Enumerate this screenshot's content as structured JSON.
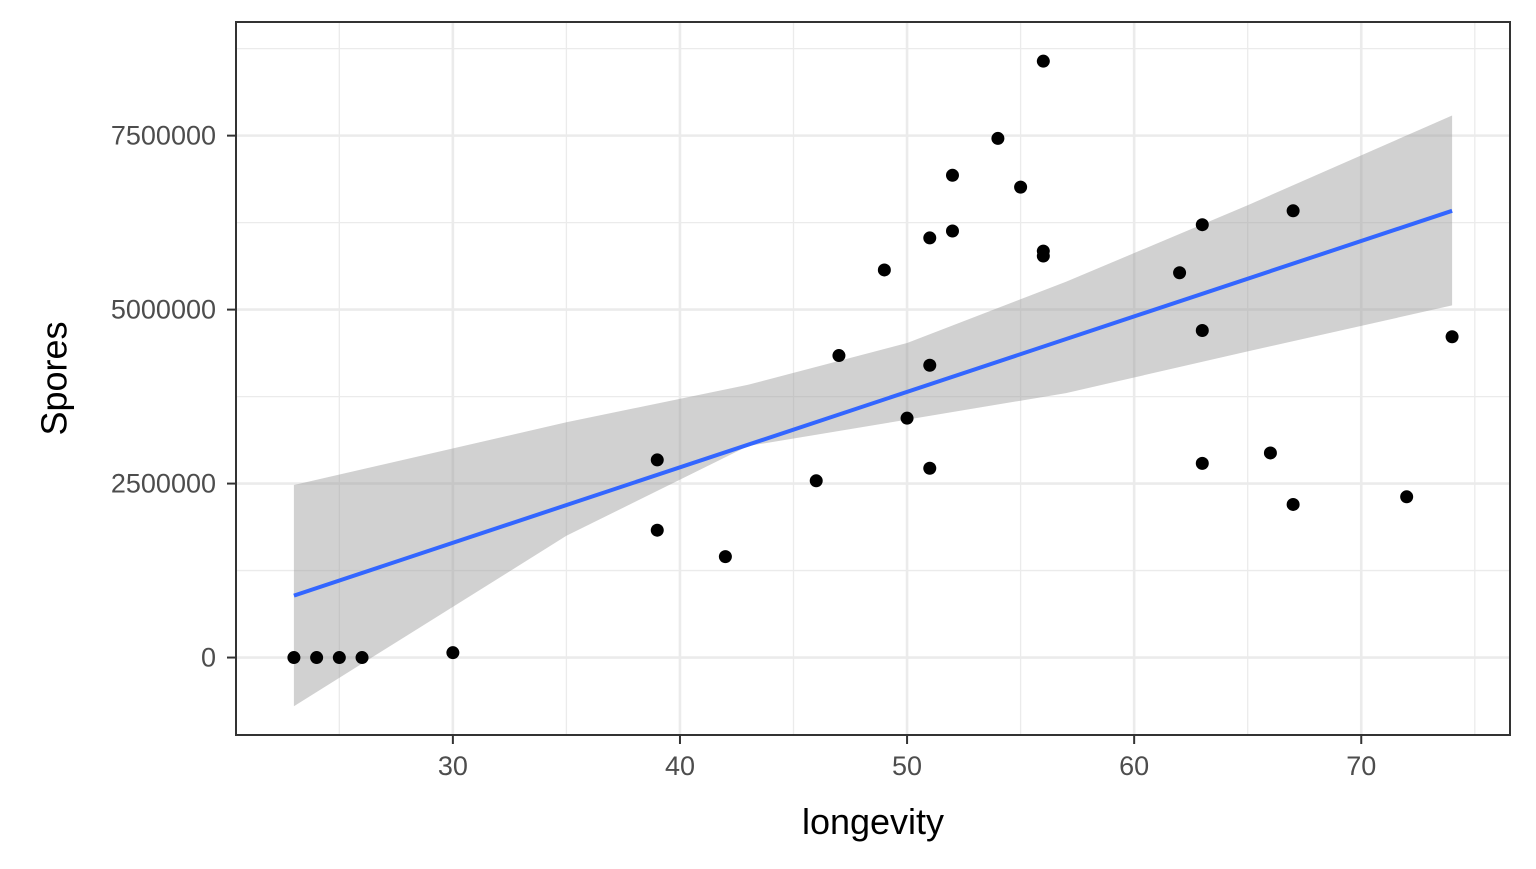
{
  "chart_data": {
    "type": "scatter",
    "title": "",
    "xlabel": "longevity",
    "ylabel": "Spores",
    "xlim": [
      20.45,
      76.55
    ],
    "ylim": [
      -1113000,
      9133000
    ],
    "x_ticks": [
      30,
      40,
      50,
      60,
      70
    ],
    "y_ticks": [
      0,
      2500000,
      5000000,
      7500000
    ],
    "x_tick_labels": [
      "30",
      "40",
      "50",
      "60",
      "70"
    ],
    "y_tick_labels": [
      "0",
      "2500000",
      "5000000",
      "7500000"
    ],
    "grid": true,
    "legend": "none",
    "series": [
      {
        "points": [
          [
            23,
            0
          ],
          [
            24,
            0
          ],
          [
            25,
            0
          ],
          [
            26,
            0
          ],
          [
            30,
            70000
          ],
          [
            39,
            2840000
          ],
          [
            39,
            1830000
          ],
          [
            42,
            1450000
          ],
          [
            46,
            2540000
          ],
          [
            47,
            4340000
          ],
          [
            49,
            5570000
          ],
          [
            50,
            3440000
          ],
          [
            51,
            6030000
          ],
          [
            51,
            4200000
          ],
          [
            51,
            2720000
          ],
          [
            52,
            6930000
          ],
          [
            52,
            6130000
          ],
          [
            54,
            7460000
          ],
          [
            55,
            6760000
          ],
          [
            56,
            8570000
          ],
          [
            56,
            5840000
          ],
          [
            56,
            5770000
          ],
          [
            62,
            5530000
          ],
          [
            63,
            6220000
          ],
          [
            63,
            4700000
          ],
          [
            63,
            2790000
          ],
          [
            66,
            2940000
          ],
          [
            67,
            6420000
          ],
          [
            67,
            2200000
          ],
          [
            72,
            2310000
          ],
          [
            74,
            4610000
          ]
        ]
      }
    ],
    "fit_line": {
      "method": "linear",
      "x": [
        23,
        74
      ],
      "y": [
        890000,
        6420000
      ],
      "ci_lower": [
        -700000,
        5060000
      ],
      "ci_upper": [
        2480000,
        7790000
      ],
      "ci_knots": [
        {
          "x": 23,
          "lo": -700000,
          "hi": 2480000
        },
        {
          "x": 35,
          "lo": 1750000,
          "hi": 3380000
        },
        {
          "x": 43,
          "lo": 3040000,
          "hi": 3920000
        },
        {
          "x": 50,
          "lo": 3420000,
          "hi": 4520000
        },
        {
          "x": 57,
          "lo": 3800000,
          "hi": 5400000
        },
        {
          "x": 65,
          "lo": 4400000,
          "hi": 6500000
        },
        {
          "x": 74,
          "lo": 5060000,
          "hi": 7790000
        }
      ]
    },
    "colors": {
      "points": "#000000",
      "fit_line": "#3366ff",
      "ci_band": "#999999",
      "grid": "#ebebeb",
      "panel_border": "#333333"
    }
  }
}
